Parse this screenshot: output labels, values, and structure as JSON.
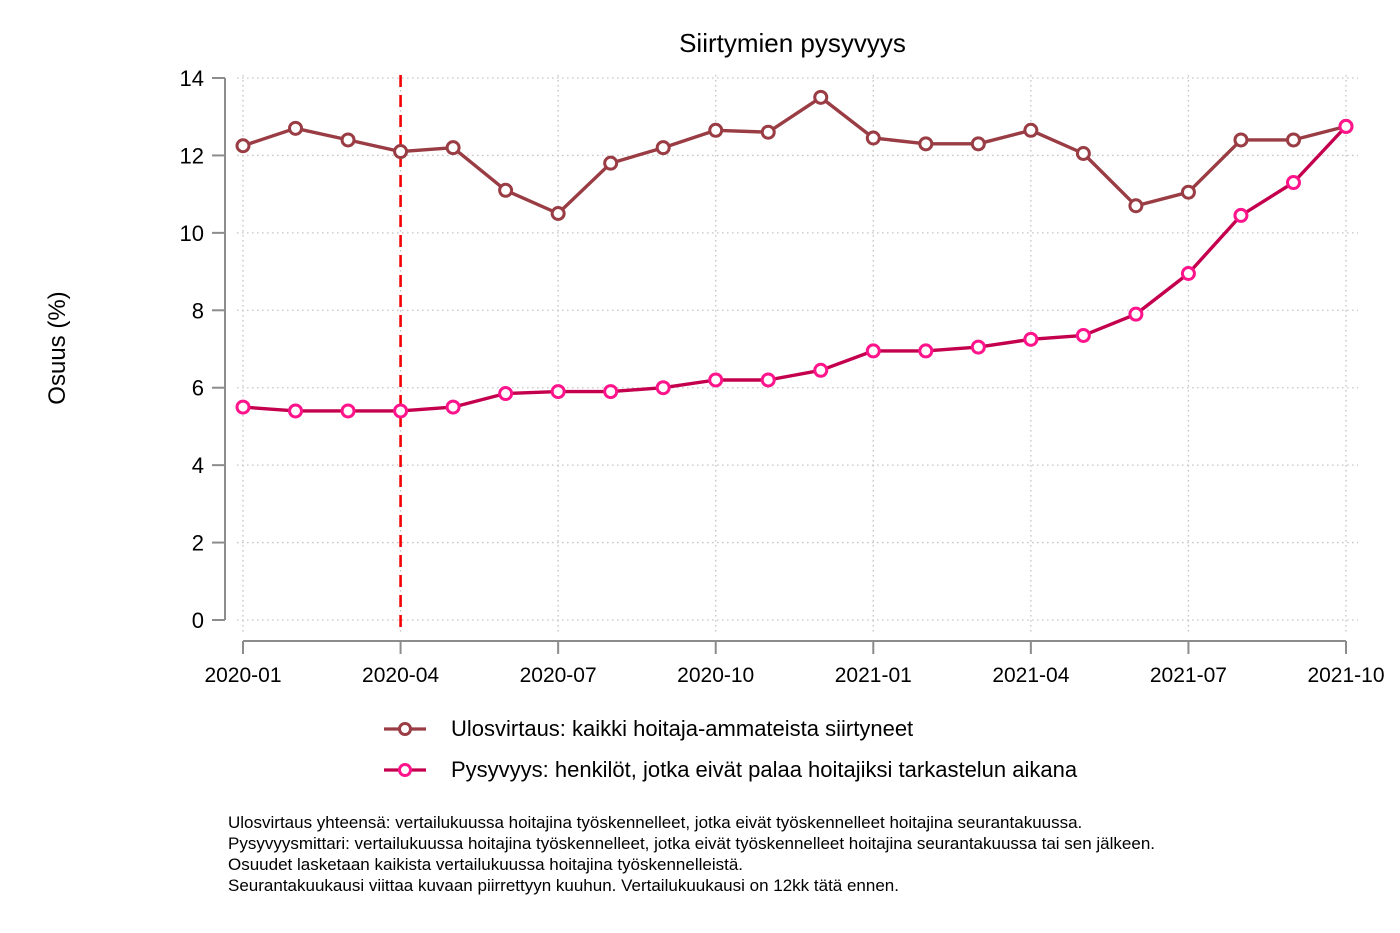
{
  "title": "Siirtymien pysyvyys",
  "chart_data": {
    "type": "line",
    "title": "Siirtymien pysyvyys",
    "xlabel": "",
    "ylabel": "Osuus (%)",
    "ylim": [
      0,
      14
    ],
    "y_ticks": [
      0,
      2,
      4,
      6,
      8,
      10,
      12,
      14
    ],
    "grid": true,
    "legend_position": "below-left",
    "x": [
      "2020-01",
      "2020-02",
      "2020-03",
      "2020-04",
      "2020-05",
      "2020-06",
      "2020-07",
      "2020-08",
      "2020-09",
      "2020-10",
      "2020-11",
      "2020-12",
      "2021-01",
      "2021-02",
      "2021-03",
      "2021-04",
      "2021-05",
      "2021-06",
      "2021-07",
      "2021-08",
      "2021-09",
      "2021-10"
    ],
    "x_tick_labels": [
      "2020-01",
      "2020-04",
      "2020-07",
      "2020-10",
      "2021-01",
      "2021-04",
      "2021-07",
      "2021-10"
    ],
    "reference_line": {
      "x": "2020-04",
      "style": "dashed",
      "color": "#f40000"
    },
    "series": [
      {
        "name": "Ulosvirtaus: kaikki hoitaja-ammateista siirtyneet",
        "color": "#9a3c44",
        "marker_color": "#9a3c44",
        "marker": "open-circle",
        "values": [
          12.25,
          12.7,
          12.4,
          12.1,
          12.2,
          11.1,
          10.5,
          11.8,
          12.2,
          12.65,
          12.6,
          13.5,
          12.45,
          12.3,
          12.3,
          12.65,
          12.05,
          10.7,
          11.05,
          12.4,
          12.4,
          12.75
        ]
      },
      {
        "name": "Pysyvyys: henkilöt, jotka eivät palaa hoitajiksi tarkastelun aikana",
        "color": "#c4004e",
        "marker_color": "#ff148c",
        "marker": "open-circle",
        "values": [
          5.5,
          5.4,
          5.4,
          5.4,
          5.5,
          5.85,
          5.9,
          5.9,
          6.0,
          6.2,
          6.2,
          6.45,
          6.95,
          6.95,
          7.05,
          7.25,
          7.35,
          7.9,
          8.95,
          10.45,
          11.3,
          12.75
        ]
      }
    ]
  },
  "colors": {
    "axis": "#8c8c8c",
    "grid": "#c6c6c6",
    "reference_line": "#f40000",
    "text": "#000000",
    "background": "#ffffff"
  },
  "notes": [
    "Ulosvirtaus yhteensä: vertailukuussa hoitajina työskennelleet, jotka eivät työskennelleet hoitajina seurantakuussa.",
    "Pysyvyysmittari: vertailukuussa hoitajina työskennelleet, jotka eivät työskennelleet hoitajina seurantakuussa tai sen jälkeen.",
    "Osuudet lasketaan kaikista vertailukuussa hoitajina työskennelleistä.",
    "Seurantakuukausi viittaa kuvaan piirrettyyn kuuhun. Vertailukuukausi on 12kk tätä ennen."
  ]
}
